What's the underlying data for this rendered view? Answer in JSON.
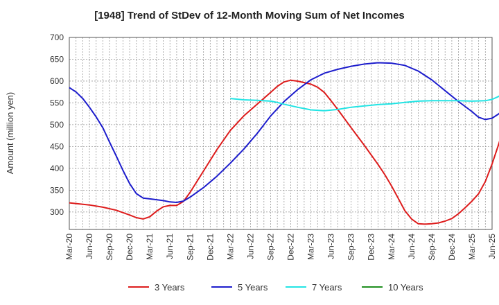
{
  "chart_data": {
    "type": "line",
    "title": "[1948]  Trend of StDev of 12-Month Moving Sum of Net Incomes",
    "ylabel": "Amount (million yen)",
    "xlabel": "",
    "ylim": [
      260,
      700
    ],
    "yticks": [
      300,
      350,
      400,
      450,
      500,
      550,
      600,
      650,
      700
    ],
    "xticks": [
      "Mar-20",
      "Jun-20",
      "Sep-20",
      "Dec-20",
      "Mar-21",
      "Jun-21",
      "Sep-21",
      "Dec-21",
      "Mar-22",
      "Jun-22",
      "Sep-22",
      "Dec-22",
      "Mar-23",
      "Jun-23",
      "Sep-23",
      "Dec-23",
      "Mar-24",
      "Jun-24",
      "Sep-24",
      "Dec-24",
      "Mar-25",
      "Jun-25"
    ],
    "grid": true,
    "legend_position": "bottom",
    "series": [
      {
        "name": "3 Years",
        "color": "#dd1c1c",
        "points": [
          [
            0,
            321
          ],
          [
            3,
            316
          ],
          [
            5,
            311
          ],
          [
            7,
            304
          ],
          [
            9,
            293
          ],
          [
            10,
            287
          ],
          [
            11,
            284
          ],
          [
            12,
            289
          ],
          [
            13,
            302
          ],
          [
            14,
            312
          ],
          [
            15,
            315
          ],
          [
            16,
            315
          ],
          [
            17,
            324
          ],
          [
            18,
            345
          ],
          [
            20,
            394
          ],
          [
            22,
            443
          ],
          [
            24,
            487
          ],
          [
            26,
            520
          ],
          [
            28,
            547
          ],
          [
            30,
            574
          ],
          [
            31,
            588
          ],
          [
            32,
            598
          ],
          [
            33,
            602
          ],
          [
            34,
            600
          ],
          [
            36,
            593
          ],
          [
            37,
            586
          ],
          [
            38,
            574
          ],
          [
            39,
            555
          ],
          [
            40,
            535
          ],
          [
            42,
            493
          ],
          [
            44,
            452
          ],
          [
            46,
            409
          ],
          [
            47,
            386
          ],
          [
            48,
            360
          ],
          [
            49,
            332
          ],
          [
            50,
            303
          ],
          [
            51,
            284
          ],
          [
            52,
            273
          ],
          [
            53,
            272
          ],
          [
            54,
            273
          ],
          [
            55,
            275
          ],
          [
            56,
            279
          ],
          [
            57,
            285
          ],
          [
            58,
            296
          ],
          [
            59,
            310
          ],
          [
            60,
            325
          ],
          [
            61,
            342
          ],
          [
            62,
            370
          ],
          [
            63,
            410
          ],
          [
            64,
            456
          ],
          [
            65,
            510
          ],
          [
            66,
            565
          ],
          [
            67,
            628
          ],
          [
            68,
            690
          ]
        ]
      },
      {
        "name": "5 Years",
        "color": "#1c1ccc",
        "points": [
          [
            0,
            585
          ],
          [
            1,
            575
          ],
          [
            2,
            560
          ],
          [
            3,
            540
          ],
          [
            4,
            518
          ],
          [
            5,
            493
          ],
          [
            6,
            460
          ],
          [
            7,
            428
          ],
          [
            8,
            395
          ],
          [
            9,
            365
          ],
          [
            10,
            342
          ],
          [
            11,
            332
          ],
          [
            12,
            330
          ],
          [
            14,
            326
          ],
          [
            15,
            323
          ],
          [
            16,
            322
          ],
          [
            17,
            325
          ],
          [
            18,
            334
          ],
          [
            20,
            356
          ],
          [
            22,
            382
          ],
          [
            24,
            412
          ],
          [
            26,
            444
          ],
          [
            28,
            480
          ],
          [
            30,
            520
          ],
          [
            32,
            553
          ],
          [
            34,
            580
          ],
          [
            36,
            603
          ],
          [
            38,
            618
          ],
          [
            40,
            627
          ],
          [
            42,
            634
          ],
          [
            44,
            639
          ],
          [
            46,
            642
          ],
          [
            48,
            641
          ],
          [
            50,
            636
          ],
          [
            52,
            623
          ],
          [
            54,
            603
          ],
          [
            56,
            578
          ],
          [
            58,
            553
          ],
          [
            60,
            530
          ],
          [
            61,
            517
          ],
          [
            62,
            512
          ],
          [
            63,
            515
          ],
          [
            64,
            525
          ],
          [
            65,
            540
          ],
          [
            66,
            563
          ],
          [
            67,
            590
          ],
          [
            68,
            617
          ]
        ]
      },
      {
        "name": "7 Years",
        "color": "#22e4e4",
        "points": [
          [
            24,
            560
          ],
          [
            26,
            557
          ],
          [
            28,
            556
          ],
          [
            30,
            554
          ],
          [
            31,
            551
          ],
          [
            32,
            547
          ],
          [
            34,
            540
          ],
          [
            36,
            534
          ],
          [
            38,
            532
          ],
          [
            40,
            535
          ],
          [
            42,
            540
          ],
          [
            44,
            543
          ],
          [
            46,
            546
          ],
          [
            48,
            548
          ],
          [
            50,
            551
          ],
          [
            52,
            554
          ],
          [
            54,
            555
          ],
          [
            56,
            555
          ],
          [
            58,
            555
          ],
          [
            60,
            554
          ],
          [
            62,
            555
          ],
          [
            63,
            558
          ],
          [
            64,
            565
          ],
          [
            65,
            576
          ],
          [
            66,
            591
          ],
          [
            67,
            610
          ],
          [
            68,
            631
          ]
        ]
      },
      {
        "name": "10 Years",
        "color": "#1f8f1f",
        "points": [
          [
            66,
            593
          ],
          [
            67,
            600
          ],
          [
            68,
            613
          ]
        ]
      }
    ]
  }
}
